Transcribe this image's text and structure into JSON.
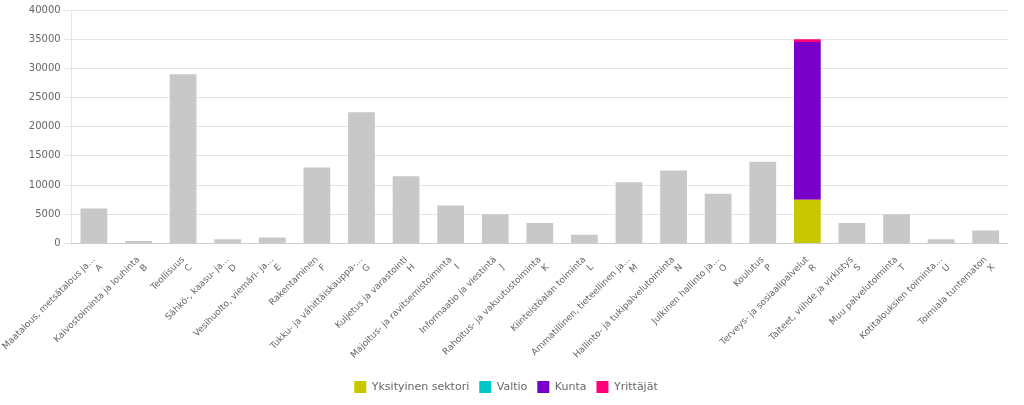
{
  "chart_data": {
    "type": "bar",
    "categories": [
      [
        "A",
        "Maatalous, metsätalous ja..."
      ],
      [
        "B",
        "Kaivostoiminta ja louhinta"
      ],
      [
        "C",
        "Teollisuus"
      ],
      [
        "D",
        "Sähkö-, kaasu- ja..."
      ],
      [
        "E",
        "Vesihuolto, viemäri- ja..."
      ],
      [
        "F",
        "Rakentaminen"
      ],
      [
        "G",
        "Tukku- ja vähittäiskauppa-..."
      ],
      [
        "H",
        "Kuljetus ja varastointi"
      ],
      [
        "I",
        "Majoitus- ja ravitsemistoiminta"
      ],
      [
        "J",
        "Informaatio ja viestintä"
      ],
      [
        "K",
        "Rahoitus- ja vakuutustoiminta"
      ],
      [
        "L",
        "Kiinteistöalan toiminta"
      ],
      [
        "M",
        "Ammatillinen, tieteellinen ja..."
      ],
      [
        "N",
        "Hallinto- ja tukipalvelutoiminta"
      ],
      [
        "O",
        "Julkinen hallinto ja..."
      ],
      [
        "P",
        "Koulutus"
      ],
      [
        "R",
        "Terveys- ja sosiaalipalvelut"
      ],
      [
        "S",
        "Taiteet, viihde ja virkistys"
      ],
      [
        "T",
        "Muu palvelutoiminta"
      ],
      [
        "U",
        "Kotitalouksien toiminta..."
      ],
      [
        "X",
        "Toimiala tuntematon"
      ]
    ],
    "series": [
      {
        "color": "#c8c8c8",
        "values": [
          6000,
          400,
          29000,
          700,
          1000,
          13000,
          22500,
          11500,
          6500,
          5000,
          3500,
          1500,
          10500,
          12500,
          8500,
          14000,
          0,
          3500,
          5000,
          700,
          2200
        ]
      },
      {
        "name": "Yksityinen sektori",
        "color": "#c8c800",
        "values": [
          0,
          0,
          0,
          0,
          0,
          0,
          0,
          0,
          0,
          0,
          0,
          0,
          0,
          0,
          0,
          0,
          7500,
          0,
          0,
          0,
          0
        ]
      },
      {
        "name": "Valtio",
        "color": "#00c8c8",
        "values": [
          null,
          null,
          null,
          null,
          null,
          null,
          null,
          null,
          null,
          null,
          null,
          null,
          null,
          null,
          null,
          null,
          null,
          null,
          null,
          null,
          null
        ]
      },
      {
        "name": "Kunta",
        "color": "#7800c8",
        "values": [
          0,
          0,
          0,
          0,
          0,
          0,
          0,
          0,
          0,
          0,
          0,
          0,
          0,
          0,
          0,
          0,
          27000,
          0,
          0,
          0,
          0
        ]
      },
      {
        "name": "Yrittäjät",
        "color": "#ff0078",
        "values": [
          0,
          0,
          0,
          0,
          0,
          0,
          0,
          0,
          0,
          0,
          0,
          0,
          0,
          0,
          0,
          0,
          500,
          0,
          0,
          0,
          0
        ]
      }
    ],
    "stacked": true,
    "ylim": [
      0,
      40000
    ],
    "yticks": [
      0,
      5000,
      10000,
      15000,
      20000,
      25000,
      30000,
      35000,
      40000
    ],
    "grid": true,
    "legend": "bottom"
  }
}
